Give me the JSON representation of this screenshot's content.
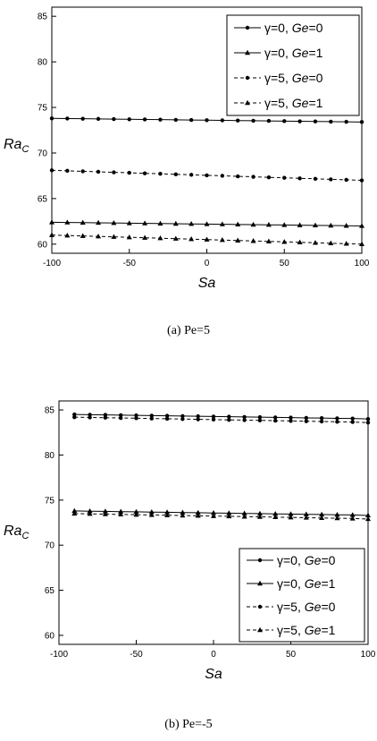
{
  "legend_labels": [
    "γ=0, Ge=0",
    "γ=0, Ge=1",
    "γ=5, Ge=0",
    "γ=5, Ge=1"
  ],
  "chart_data": [
    {
      "type": "line",
      "caption": "(a) Pe=5",
      "xlabel": "Sa",
      "ylabel": "Ra_C",
      "xlim": [
        -100,
        100
      ],
      "ylim": [
        59,
        86
      ],
      "xticks": [
        -100,
        -50,
        0,
        50,
        100
      ],
      "yticks": [
        60,
        65,
        70,
        75,
        80,
        85
      ],
      "grid": false,
      "legend_position": "top-right",
      "series": [
        {
          "name": "γ=0, Ge=0",
          "marker": "circle",
          "dash": "solid",
          "x": [
            -100,
            -90,
            -80,
            -70,
            -60,
            -50,
            -40,
            -30,
            -20,
            -10,
            0,
            10,
            20,
            30,
            40,
            50,
            60,
            70,
            80,
            90,
            100
          ],
          "values": [
            73.8,
            73.78,
            73.76,
            73.74,
            73.72,
            73.7,
            73.68,
            73.66,
            73.64,
            73.62,
            73.6,
            73.58,
            73.56,
            73.54,
            73.52,
            73.5,
            73.48,
            73.46,
            73.44,
            73.42,
            73.4
          ]
        },
        {
          "name": "γ=0, Ge=1",
          "marker": "triangle",
          "dash": "solid",
          "x": [
            -100,
            -90,
            -80,
            -70,
            -60,
            -50,
            -40,
            -30,
            -20,
            -10,
            0,
            10,
            20,
            30,
            40,
            50,
            60,
            70,
            80,
            90,
            100
          ],
          "values": [
            62.4,
            62.38,
            62.36,
            62.34,
            62.32,
            62.3,
            62.28,
            62.26,
            62.24,
            62.22,
            62.2,
            62.18,
            62.16,
            62.14,
            62.12,
            62.1,
            62.08,
            62.06,
            62.04,
            62.02,
            62.0
          ]
        },
        {
          "name": "γ=5, Ge=0",
          "marker": "circle",
          "dash": "dashed",
          "x": [
            -100,
            -90,
            -80,
            -70,
            -60,
            -50,
            -40,
            -30,
            -20,
            -10,
            0,
            10,
            20,
            30,
            40,
            50,
            60,
            70,
            80,
            90,
            100
          ],
          "values": [
            68.1,
            68.05,
            67.99,
            67.94,
            67.88,
            67.83,
            67.77,
            67.72,
            67.66,
            67.61,
            67.55,
            67.5,
            67.44,
            67.39,
            67.33,
            67.28,
            67.22,
            67.17,
            67.11,
            67.06,
            67.0
          ]
        },
        {
          "name": "γ=5, Ge=1",
          "marker": "triangle",
          "dash": "dashed",
          "x": [
            -100,
            -90,
            -80,
            -70,
            -60,
            -50,
            -40,
            -30,
            -20,
            -10,
            0,
            10,
            20,
            30,
            40,
            50,
            60,
            70,
            80,
            90,
            100
          ],
          "values": [
            61.0,
            60.95,
            60.9,
            60.85,
            60.8,
            60.75,
            60.7,
            60.65,
            60.6,
            60.55,
            60.5,
            60.45,
            60.4,
            60.35,
            60.3,
            60.25,
            60.2,
            60.15,
            60.1,
            60.05,
            60.0
          ]
        }
      ]
    },
    {
      "type": "line",
      "caption": "(b) Pe=-5",
      "xlabel": "Sa",
      "ylabel": "Ra_C",
      "xlim": [
        -100,
        100
      ],
      "ylim": [
        59,
        86
      ],
      "xticks": [
        -100,
        -50,
        0,
        50,
        100
      ],
      "yticks": [
        60,
        65,
        70,
        75,
        80,
        85
      ],
      "grid": false,
      "legend_position": "bottom-right",
      "series": [
        {
          "name": "γ=0, Ge=0",
          "marker": "circle",
          "dash": "solid",
          "x": [
            -90,
            -80,
            -70,
            -60,
            -50,
            -40,
            -30,
            -20,
            -10,
            0,
            10,
            20,
            30,
            40,
            50,
            60,
            70,
            80,
            90,
            100
          ],
          "values": [
            84.5,
            84.47,
            84.45,
            84.42,
            84.4,
            84.37,
            84.35,
            84.32,
            84.3,
            84.27,
            84.25,
            84.22,
            84.2,
            84.17,
            84.15,
            84.12,
            84.1,
            84.07,
            84.05,
            84.0
          ]
        },
        {
          "name": "γ=0, Ge=1",
          "marker": "triangle",
          "dash": "solid",
          "x": [
            -90,
            -80,
            -70,
            -60,
            -50,
            -40,
            -30,
            -20,
            -10,
            0,
            10,
            20,
            30,
            40,
            50,
            60,
            70,
            80,
            90,
            100
          ],
          "values": [
            73.8,
            73.77,
            73.75,
            73.72,
            73.7,
            73.67,
            73.65,
            73.62,
            73.6,
            73.57,
            73.55,
            73.52,
            73.5,
            73.47,
            73.45,
            73.42,
            73.4,
            73.37,
            73.35,
            73.3
          ]
        },
        {
          "name": "γ=5, Ge=0",
          "marker": "circle",
          "dash": "dashed",
          "x": [
            -90,
            -80,
            -70,
            -60,
            -50,
            -40,
            -30,
            -20,
            -10,
            0,
            10,
            20,
            30,
            40,
            50,
            60,
            70,
            80,
            90,
            100
          ],
          "values": [
            84.2,
            84.17,
            84.14,
            84.11,
            84.08,
            84.05,
            84.02,
            83.99,
            83.96,
            83.93,
            83.9,
            83.87,
            83.84,
            83.81,
            83.78,
            83.75,
            83.72,
            83.69,
            83.66,
            83.6
          ]
        },
        {
          "name": "γ=5, Ge=1",
          "marker": "triangle",
          "dash": "dashed",
          "x": [
            -90,
            -80,
            -70,
            -60,
            -50,
            -40,
            -30,
            -20,
            -10,
            0,
            10,
            20,
            30,
            40,
            50,
            60,
            70,
            80,
            90,
            100
          ],
          "values": [
            73.5,
            73.47,
            73.44,
            73.41,
            73.38,
            73.35,
            73.32,
            73.29,
            73.26,
            73.23,
            73.2,
            73.17,
            73.14,
            73.11,
            73.08,
            73.05,
            73.02,
            72.99,
            72.96,
            72.9
          ]
        }
      ]
    }
  ]
}
